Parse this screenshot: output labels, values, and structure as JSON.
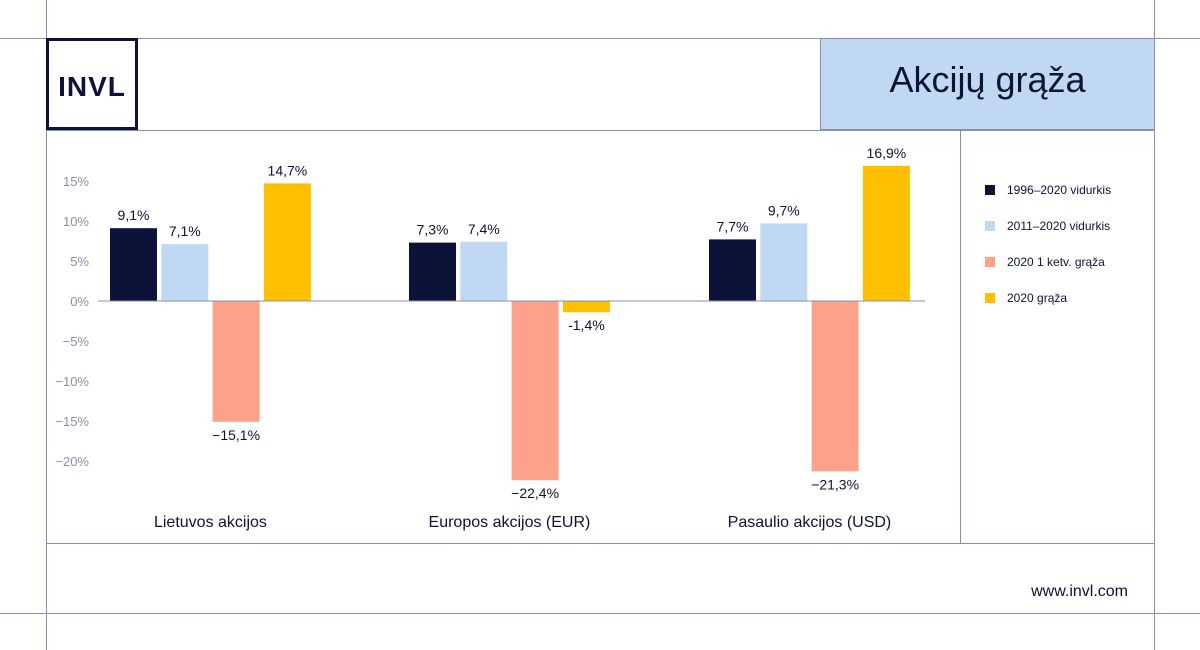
{
  "brand": {
    "logo_text": "INVL",
    "url": "www.invl.com"
  },
  "title": "Akcijų grąža",
  "colors": {
    "navy": "#0d1238",
    "light_blue": "#c0d8f2",
    "salmon": "#fda28a",
    "yellow": "#ffc000"
  },
  "chart_data": {
    "type": "bar",
    "categories": [
      "Lietuvos akcijos",
      "Europos akcijos (EUR)",
      "Pasaulio akcijos (USD)"
    ],
    "series": [
      {
        "name": "1996–2020 vidurkis",
        "color": "#0d1238",
        "values": [
          9.1,
          7.3,
          7.7
        ],
        "labels": [
          "9,1%",
          "7,3%",
          "7,7%"
        ]
      },
      {
        "name": "2011–2020 vidurkis",
        "color": "#c0d8f2",
        "values": [
          7.1,
          7.4,
          9.7
        ],
        "labels": [
          "7,1%",
          "7,4%",
          "9,7%"
        ]
      },
      {
        "name": "2020 1 ketv. grąža",
        "color": "#fda28a",
        "values": [
          -15.1,
          -22.4,
          -21.3
        ],
        "labels": [
          "−15,1%",
          "−22,4%",
          "−21,3%"
        ]
      },
      {
        "name": "2020 grąža",
        "color": "#ffc000",
        "values": [
          14.7,
          -1.4,
          16.9
        ],
        "labels": [
          "14,7%",
          "-1,4%",
          "16,9%"
        ]
      }
    ],
    "yticks": [
      15,
      10,
      5,
      0,
      -5,
      -10,
      -15,
      -20
    ],
    "ytick_labels": [
      "15%",
      "10%",
      "5%",
      "0%",
      "−5%",
      "−10%",
      "−15%",
      "−20%"
    ],
    "ylim": [
      -22.4,
      16.9
    ],
    "legend": "right",
    "grid": false
  }
}
